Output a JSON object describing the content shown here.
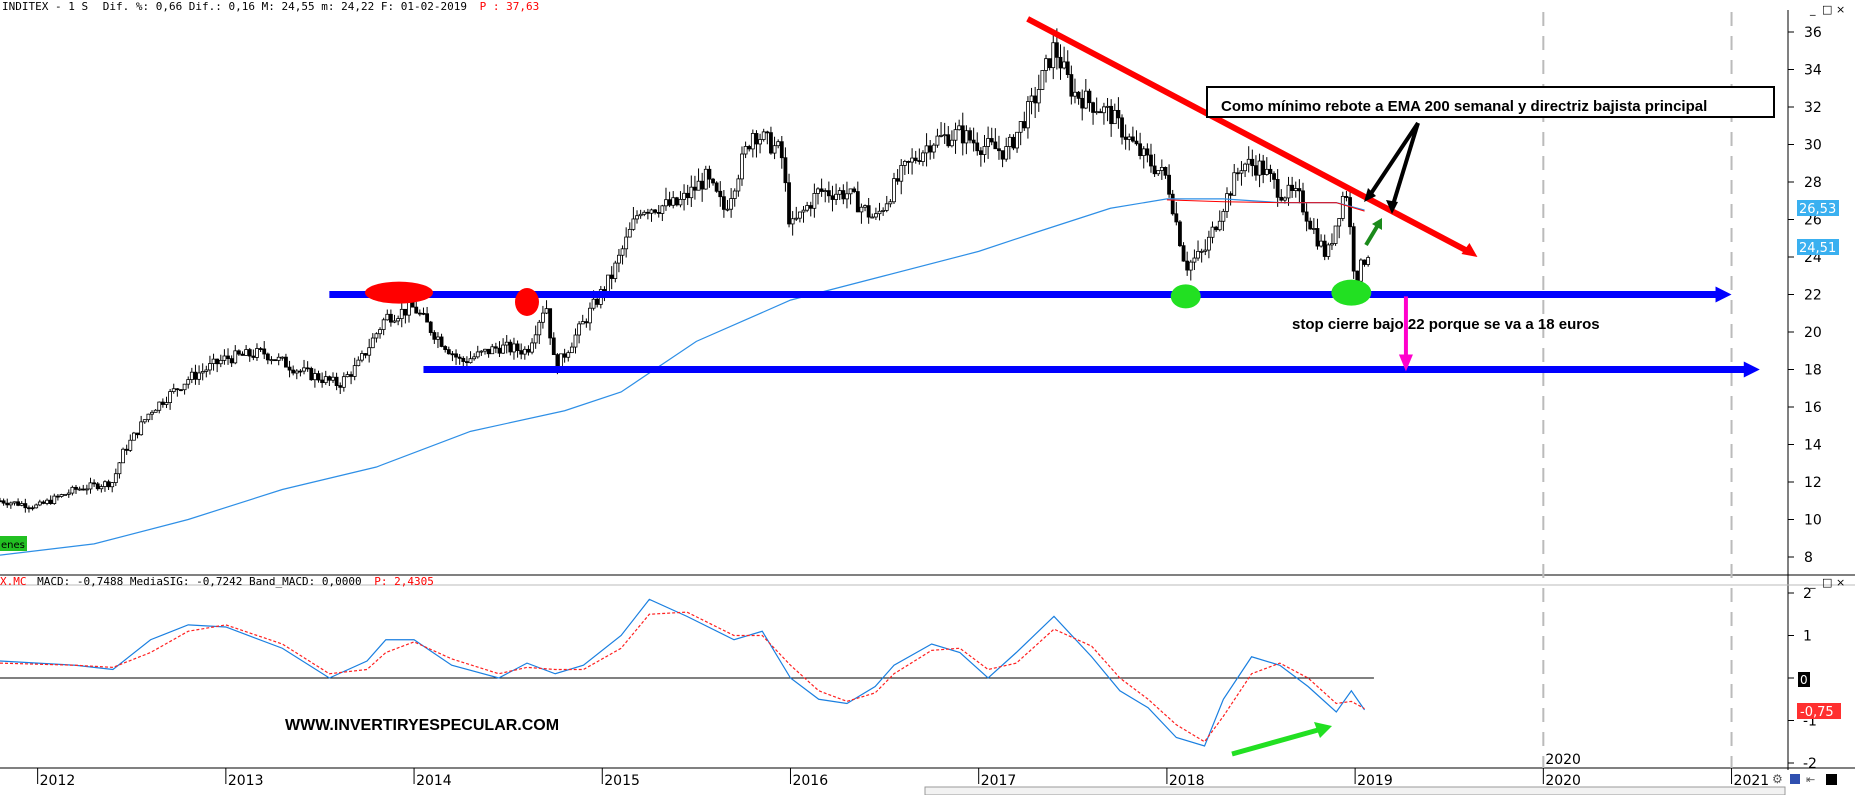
{
  "header": {
    "main_prefix": "INDITEX -  1 S",
    "main_stats": "Dif. %: 0,66 Dif.: 0,16 M: 24,55 m: 24,22 F: 01-02-2019",
    "main_p": "P : 37,63",
    "macd_symbol": "X.MC",
    "macd_stats": "MACD: -0,7488 MediaSIG: -0,7242 Band_MACD: 0,0000",
    "macd_p": "P: 2,4305"
  },
  "legend_tag": "enes",
  "annotations": {
    "callout": "Como mínimo rebote a EMA 200 semanal y directriz  bajista principal",
    "stop": "stop cierre bajo 22 porque se va a 18 euros",
    "website": "WWW.INVERTIRYESPECULAR.COM"
  },
  "price_tags": {
    "ema": "26,53",
    "last": "24,51",
    "macd_zero": "0",
    "macd_last": "-0,75"
  },
  "colors": {
    "candle": "#000000",
    "ema": "#2e8fe6",
    "support": "#0000ff",
    "trend": "#ff0000",
    "macd": "#1a7fe0",
    "signal": "#ff2020",
    "green": "#22e022",
    "magenta": "#ff00cc"
  },
  "chart_data": [
    {
      "type": "candlestick",
      "ylim": [
        7,
        37
      ],
      "y_ticks": [
        8,
        10,
        12,
        14,
        16,
        18,
        20,
        22,
        24,
        26,
        28,
        30,
        32,
        34,
        36
      ],
      "x_ticks": [
        "2012",
        "2013",
        "2014",
        "2015",
        "2016",
        "2017",
        "2018",
        "2019",
        "2020",
        "2021"
      ],
      "xlim": [
        2011.8,
        2021.3
      ],
      "close_path": [
        [
          2011.8,
          11.0
        ],
        [
          2012.0,
          10.7
        ],
        [
          2012.2,
          11.6
        ],
        [
          2012.4,
          12.0
        ],
        [
          2012.45,
          13.5
        ],
        [
          2012.6,
          15.8
        ],
        [
          2012.8,
          17.5
        ],
        [
          2013.0,
          18.6
        ],
        [
          2013.2,
          18.9
        ],
        [
          2013.4,
          17.9
        ],
        [
          2013.6,
          17.2
        ],
        [
          2013.7,
          18.2
        ],
        [
          2013.85,
          20.8
        ],
        [
          2014.0,
          21.3
        ],
        [
          2014.1,
          20.0
        ],
        [
          2014.25,
          18.4
        ],
        [
          2014.45,
          19.2
        ],
        [
          2014.6,
          19.0
        ],
        [
          2014.7,
          21.6
        ],
        [
          2014.75,
          18.0
        ],
        [
          2014.9,
          20.5
        ],
        [
          2015.05,
          23.0
        ],
        [
          2015.2,
          26.6
        ],
        [
          2015.4,
          26.8
        ],
        [
          2015.55,
          28.2
        ],
        [
          2015.65,
          26.5
        ],
        [
          2015.8,
          30.7
        ],
        [
          2015.95,
          29.6
        ],
        [
          2016.0,
          25.5
        ],
        [
          2016.15,
          27.5
        ],
        [
          2016.3,
          27.4
        ],
        [
          2016.45,
          26.0
        ],
        [
          2016.6,
          28.6
        ],
        [
          2016.75,
          30.2
        ],
        [
          2016.9,
          30.6
        ],
        [
          2017.0,
          30.0
        ],
        [
          2017.15,
          29.6
        ],
        [
          2017.3,
          32.5
        ],
        [
          2017.4,
          35.2
        ],
        [
          2017.5,
          32.8
        ],
        [
          2017.7,
          31.6
        ],
        [
          2017.85,
          29.6
        ],
        [
          2018.0,
          28.2
        ],
        [
          2018.1,
          23.5
        ],
        [
          2018.2,
          24.3
        ],
        [
          2018.3,
          26.8
        ],
        [
          2018.4,
          29.0
        ],
        [
          2018.5,
          28.8
        ],
        [
          2018.6,
          27.5
        ],
        [
          2018.7,
          27.2
        ],
        [
          2018.8,
          25.0
        ],
        [
          2018.85,
          24.0
        ],
        [
          2018.95,
          27.8
        ],
        [
          2019.0,
          22.8
        ],
        [
          2019.08,
          24.5
        ]
      ],
      "ema200_path": [
        [
          2011.8,
          8.1
        ],
        [
          2012.3,
          8.7
        ],
        [
          2012.8,
          10.0
        ],
        [
          2013.3,
          11.6
        ],
        [
          2013.8,
          12.8
        ],
        [
          2014.3,
          14.7
        ],
        [
          2014.8,
          15.8
        ],
        [
          2015.1,
          16.8
        ],
        [
          2015.5,
          19.5
        ],
        [
          2016.0,
          21.7
        ],
        [
          2016.5,
          23.0
        ],
        [
          2017.0,
          24.3
        ],
        [
          2017.3,
          25.3
        ],
        [
          2017.7,
          26.6
        ],
        [
          2018.0,
          27.1
        ],
        [
          2018.3,
          27.1
        ],
        [
          2018.6,
          26.9
        ],
        [
          2018.9,
          26.9
        ],
        [
          2019.05,
          26.5
        ]
      ],
      "support_levels": [
        {
          "value": 22,
          "x_from": 2013.55,
          "x_to": 2021.0
        },
        {
          "value": 18,
          "x_from": 2014.05,
          "x_to": 2021.15
        }
      ],
      "trendline": {
        "from": [
          2017.26,
          36.7
        ],
        "to": [
          2019.65,
          24.0
        ]
      }
    },
    {
      "type": "line",
      "indicator": "MACD",
      "ylim": [
        -2.2,
        2.1
      ],
      "y_ticks": [
        2,
        1,
        0,
        -1,
        -2
      ],
      "series": [
        {
          "name": "MACD",
          "points": [
            [
              2011.8,
              0.4
            ],
            [
              2012.2,
              0.3
            ],
            [
              2012.4,
              0.2
            ],
            [
              2012.6,
              0.9
            ],
            [
              2012.8,
              1.25
            ],
            [
              2013.0,
              1.2
            ],
            [
              2013.3,
              0.7
            ],
            [
              2013.55,
              0.0
            ],
            [
              2013.75,
              0.4
            ],
            [
              2013.85,
              0.9
            ],
            [
              2014.0,
              0.9
            ],
            [
              2014.2,
              0.3
            ],
            [
              2014.45,
              0.0
            ],
            [
              2014.6,
              0.35
            ],
            [
              2014.75,
              0.1
            ],
            [
              2014.9,
              0.3
            ],
            [
              2015.1,
              1.0
            ],
            [
              2015.25,
              1.85
            ],
            [
              2015.45,
              1.45
            ],
            [
              2015.7,
              0.9
            ],
            [
              2015.85,
              1.1
            ],
            [
              2016.0,
              0.0
            ],
            [
              2016.15,
              -0.5
            ],
            [
              2016.3,
              -0.6
            ],
            [
              2016.45,
              -0.2
            ],
            [
              2016.55,
              0.3
            ],
            [
              2016.75,
              0.8
            ],
            [
              2016.9,
              0.6
            ],
            [
              2017.05,
              0.0
            ],
            [
              2017.2,
              0.6
            ],
            [
              2017.4,
              1.45
            ],
            [
              2017.6,
              0.5
            ],
            [
              2017.75,
              -0.3
            ],
            [
              2017.9,
              -0.7
            ],
            [
              2018.05,
              -1.4
            ],
            [
              2018.2,
              -1.6
            ],
            [
              2018.3,
              -0.5
            ],
            [
              2018.45,
              0.5
            ],
            [
              2018.6,
              0.3
            ],
            [
              2018.75,
              -0.2
            ],
            [
              2018.9,
              -0.8
            ],
            [
              2018.98,
              -0.3
            ],
            [
              2019.05,
              -0.75
            ]
          ]
        },
        {
          "name": "MediaSIG",
          "points": [
            [
              2011.8,
              0.35
            ],
            [
              2012.2,
              0.3
            ],
            [
              2012.4,
              0.25
            ],
            [
              2012.6,
              0.6
            ],
            [
              2012.8,
              1.1
            ],
            [
              2013.0,
              1.25
            ],
            [
              2013.3,
              0.8
            ],
            [
              2013.55,
              0.1
            ],
            [
              2013.75,
              0.2
            ],
            [
              2013.85,
              0.6
            ],
            [
              2014.0,
              0.85
            ],
            [
              2014.2,
              0.45
            ],
            [
              2014.45,
              0.1
            ],
            [
              2014.6,
              0.25
            ],
            [
              2014.75,
              0.2
            ],
            [
              2014.9,
              0.2
            ],
            [
              2015.1,
              0.7
            ],
            [
              2015.25,
              1.5
            ],
            [
              2015.45,
              1.55
            ],
            [
              2015.7,
              1.0
            ],
            [
              2015.85,
              1.0
            ],
            [
              2016.0,
              0.3
            ],
            [
              2016.15,
              -0.3
            ],
            [
              2016.3,
              -0.55
            ],
            [
              2016.45,
              -0.35
            ],
            [
              2016.55,
              0.1
            ],
            [
              2016.75,
              0.65
            ],
            [
              2016.9,
              0.7
            ],
            [
              2017.05,
              0.2
            ],
            [
              2017.2,
              0.35
            ],
            [
              2017.4,
              1.15
            ],
            [
              2017.6,
              0.75
            ],
            [
              2017.75,
              0.0
            ],
            [
              2017.9,
              -0.5
            ],
            [
              2018.05,
              -1.1
            ],
            [
              2018.2,
              -1.5
            ],
            [
              2018.3,
              -0.9
            ],
            [
              2018.45,
              0.1
            ],
            [
              2018.6,
              0.35
            ],
            [
              2018.75,
              0.0
            ],
            [
              2018.9,
              -0.6
            ],
            [
              2018.98,
              -0.55
            ],
            [
              2019.05,
              -0.72
            ]
          ]
        }
      ]
    }
  ]
}
